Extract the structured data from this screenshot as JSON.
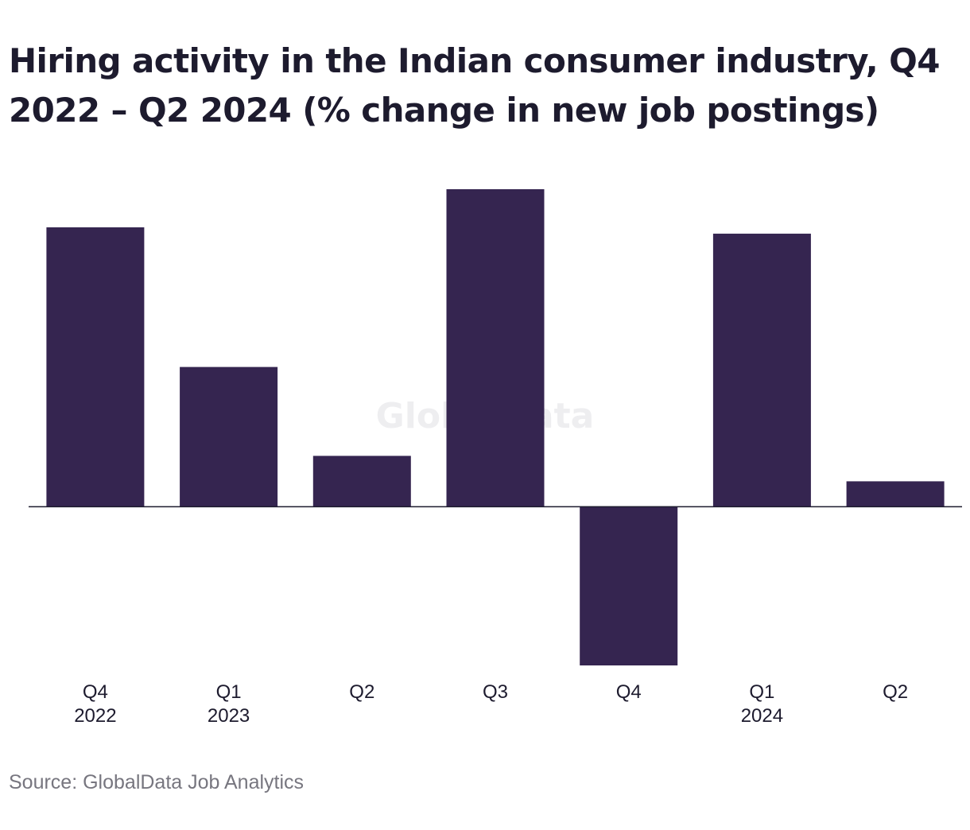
{
  "title": "Hiring activity in the Indian consumer industry, Q4 2022 – Q2 2024 (% change in new job postings)",
  "source": "Source: GlobalData Job Analytics",
  "watermark": "GlobalData",
  "colors": {
    "bar": "#352550",
    "baseline": "#1d1b2e",
    "text": "#1d1b2e",
    "source": "#77767f",
    "watermark": "#eeeef0"
  },
  "chart_data": {
    "type": "bar",
    "categories": [
      "Q4 2022",
      "Q1 2023",
      "Q2",
      "Q3",
      "Q4",
      "Q1 2024",
      "Q2"
    ],
    "tick_labels": [
      [
        "Q4",
        "2022"
      ],
      [
        "Q1",
        "2023"
      ],
      [
        "Q2"
      ],
      [
        "Q3"
      ],
      [
        "Q4"
      ],
      [
        "Q1",
        "2024"
      ],
      [
        "Q2"
      ]
    ],
    "values": [
      8.8,
      4.4,
      1.6,
      10.0,
      -5.0,
      8.6,
      0.8
    ],
    "ylim": [
      -5.0,
      10.0
    ],
    "grid": false,
    "legend": "none",
    "xlabel": "",
    "ylabel": ""
  }
}
